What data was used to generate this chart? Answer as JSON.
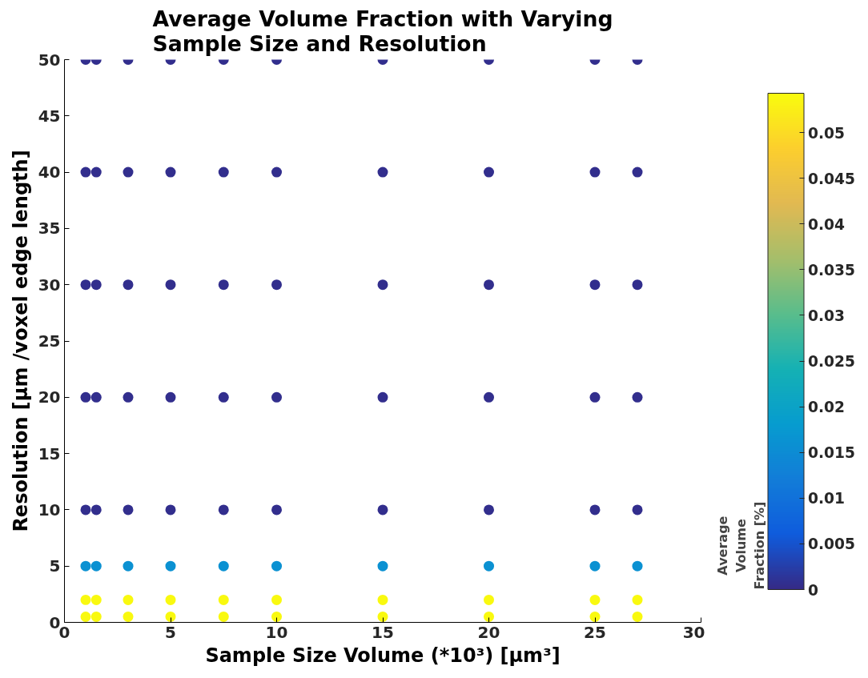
{
  "chart_data": {
    "type": "scatter",
    "title": "Average Volume Fraction with Varying Sample Size and Resolution",
    "xlabel": "Sample Size Volume (*10³) [µm³]",
    "ylabel": "Resolution [µm /voxel edge length]",
    "clabel": "Average Volume Fraction [%]",
    "xlim": [
      0,
      30
    ],
    "xticks": [
      0,
      5,
      10,
      15,
      20,
      25,
      30
    ],
    "ylim": [
      0,
      50
    ],
    "yticks": [
      0,
      5,
      10,
      15,
      20,
      25,
      30,
      35,
      40,
      45,
      50
    ],
    "clim": [
      0,
      0.0543
    ],
    "cticks": [
      0,
      0.005,
      0.01,
      0.015,
      0.02,
      0.025,
      0.03,
      0.035,
      0.04,
      0.045,
      0.05
    ],
    "grid": false,
    "marker": "circle",
    "series": [
      {
        "x": [
          1,
          1.5,
          3,
          5,
          7.5,
          10,
          15,
          20,
          25,
          27,
          1,
          1.5,
          3,
          5,
          7.5,
          10,
          15,
          20,
          25,
          27,
          1,
          1.5,
          3,
          5,
          7.5,
          10,
          15,
          20,
          25,
          27,
          1,
          1.5,
          3,
          5,
          7.5,
          10,
          15,
          20,
          25,
          27,
          1,
          1.5,
          3,
          5,
          7.5,
          10,
          15,
          20,
          25,
          27,
          1,
          1.5,
          3,
          5,
          7.5,
          10,
          15,
          20,
          25,
          27,
          1,
          1.5,
          3,
          5,
          7.5,
          10,
          15,
          20,
          25,
          27,
          1,
          1.5,
          3,
          5,
          7.5,
          10,
          15,
          20,
          25,
          27
        ],
        "values": [
          50,
          50,
          50,
          50,
          50,
          50,
          50,
          50,
          50,
          50,
          40,
          40,
          40,
          40,
          40,
          40,
          40,
          40,
          40,
          40,
          30,
          30,
          30,
          30,
          30,
          30,
          30,
          30,
          30,
          30,
          20,
          20,
          20,
          20,
          20,
          20,
          20,
          20,
          20,
          20,
          10,
          10,
          10,
          10,
          10,
          10,
          10,
          10,
          10,
          10,
          5,
          5,
          5,
          5,
          5,
          5,
          5,
          5,
          5,
          5,
          2,
          2,
          2,
          2,
          2,
          2,
          2,
          2,
          2,
          2,
          0.5,
          0.5,
          0.5,
          0.5,
          0.5,
          0.5,
          0.5,
          0.5,
          0.5,
          0.5
        ],
        "cvalues": [
          0.0005,
          0.0005,
          0.0005,
          0.0005,
          0.0005,
          0.0005,
          0.0005,
          0.0005,
          0.0005,
          0.0005,
          0.0005,
          0.0005,
          0.0005,
          0.0005,
          0.0005,
          0.0005,
          0.0005,
          0.0005,
          0.0005,
          0.0005,
          0.0005,
          0.0005,
          0.0005,
          0.0005,
          0.0005,
          0.0005,
          0.0005,
          0.0005,
          0.0005,
          0.0005,
          0.0005,
          0.0005,
          0.0005,
          0.0005,
          0.0005,
          0.0005,
          0.0005,
          0.0005,
          0.0005,
          0.0005,
          0.0005,
          0.0005,
          0.0005,
          0.0005,
          0.0005,
          0.0005,
          0.0005,
          0.0005,
          0.0005,
          0.0005,
          0.016,
          0.016,
          0.016,
          0.016,
          0.016,
          0.016,
          0.016,
          0.016,
          0.016,
          0.016,
          0.054,
          0.054,
          0.054,
          0.054,
          0.054,
          0.054,
          0.054,
          0.054,
          0.054,
          0.054,
          0.054,
          0.054,
          0.054,
          0.054,
          0.054,
          0.054,
          0.054,
          0.054,
          0.054,
          0.054
        ]
      }
    ]
  }
}
